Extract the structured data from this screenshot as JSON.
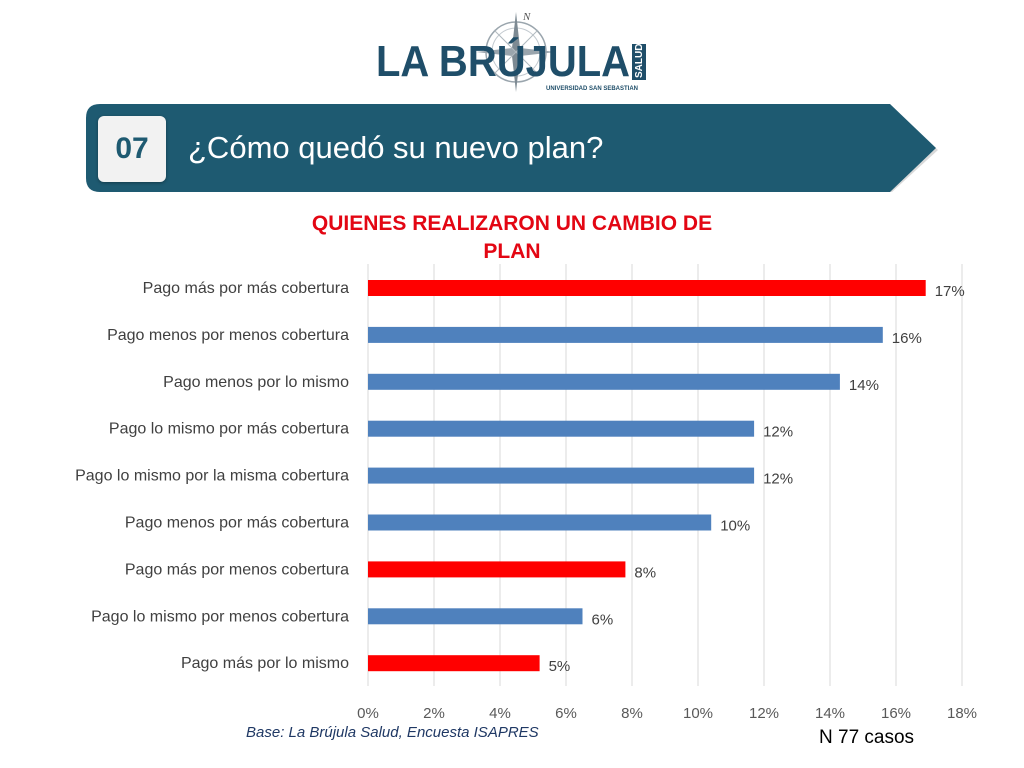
{
  "header": {
    "logo_text": "LA BRÚJULA",
    "logo_side_text": "SALUD",
    "logo_subtitle": "UNIVERSIDAD SAN SEBASTIAN",
    "compass_letter": "N",
    "banner_number": "07",
    "banner_title": "¿Cómo quedó su nuevo plan?"
  },
  "colors": {
    "highlight": "#ff0000",
    "default": "#4f81bd",
    "banner": "#1e5a71",
    "title": "#e30613"
  },
  "chart_data": {
    "type": "bar",
    "orientation": "horizontal",
    "title_lines": [
      "QUIENES REALIZARON UN CAMBIO DE",
      "PLAN"
    ],
    "categories": [
      "Pago más por más cobertura",
      "Pago menos por menos cobertura",
      "Pago menos por lo mismo",
      "Pago lo mismo por más cobertura",
      "Pago lo mismo por la misma cobertura",
      "Pago menos por más cobertura",
      "Pago más por menos cobertura",
      "Pago lo mismo por menos cobertura",
      "Pago más por lo mismo"
    ],
    "values": [
      16.9,
      15.6,
      14.3,
      11.7,
      11.7,
      10.4,
      7.8,
      6.5,
      5.2
    ],
    "data_labels": [
      "17%",
      "16%",
      "14%",
      "12%",
      "12%",
      "10%",
      "8%",
      "6%",
      "5%"
    ],
    "highlighted": [
      true,
      false,
      false,
      false,
      false,
      false,
      true,
      false,
      true
    ],
    "xlim": [
      0,
      18
    ],
    "x_ticks": [
      "0%",
      "2%",
      "4%",
      "6%",
      "8%",
      "10%",
      "12%",
      "14%",
      "16%",
      "18%"
    ],
    "grid": true,
    "legend": "none"
  },
  "footer": {
    "source": "Base: La Brújula Salud, Encuesta ISAPRES",
    "n_cases": "N 77 casos"
  }
}
